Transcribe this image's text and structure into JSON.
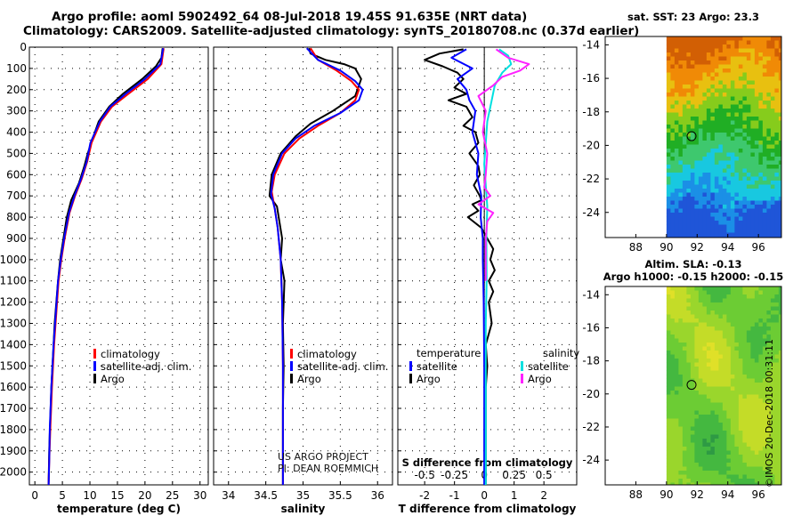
{
  "titles": {
    "line1": "Argo profile: aoml 5902492_64 08-Jul-2018 19.45S 91.635E (NRT data)",
    "line2": "Climatology: CARS2009. Satellite-adjusted climatology: synTS_20180708.nc (0.37d earlier)"
  },
  "colors": {
    "climatology": "#ff0000",
    "satellite": "#0000ff",
    "argo": "#000000",
    "sal_satellite": "#00e0e0",
    "sal_argo": "#ff22ff"
  },
  "chart_data": [
    {
      "type": "line",
      "id": "temperature",
      "xlabel": "temperature (deg C)",
      "xlim": [
        -1,
        31.5
      ],
      "xticks": [
        0,
        5,
        10,
        15,
        20,
        25,
        30
      ],
      "xtick_labels": [
        "0",
        "5",
        "10",
        "15",
        "20",
        "25",
        "30"
      ],
      "ylim": [
        0,
        2060
      ],
      "yticks": [
        0,
        100,
        200,
        300,
        400,
        500,
        600,
        700,
        800,
        900,
        1000,
        1100,
        1200,
        1300,
        1400,
        1500,
        1600,
        1700,
        1800,
        1900,
        2000
      ],
      "ytick_labels": [
        "0",
        "100",
        "200",
        "300",
        "400",
        "500",
        "600",
        "700",
        "800",
        "900",
        "1000",
        "1100",
        "1200",
        "1300",
        "1400",
        "1500",
        "1600",
        "1700",
        "1800",
        "1900",
        "2000"
      ],
      "legend": [
        "climatology",
        "satellite-adj. clim.",
        "Argo"
      ],
      "series": [
        {
          "name": "Argo",
          "color": "#000000",
          "x": [
            23.2,
            23.0,
            22.0,
            19.5,
            16.0,
            13.5,
            11.6,
            10.5,
            9.6,
            9.0,
            8.0,
            6.6,
            5.8,
            5.2,
            4.6,
            4.2,
            3.9,
            3.6,
            3.3,
            3.0,
            2.8,
            2.6,
            2.5
          ],
          "y": [
            5,
            50,
            90,
            150,
            220,
            280,
            350,
            430,
            500,
            560,
            640,
            720,
            800,
            900,
            1000,
            1100,
            1200,
            1300,
            1450,
            1600,
            1750,
            1900,
            2060
          ]
        },
        {
          "name": "climatology",
          "color": "#ff0000",
          "x": [
            23.4,
            23.0,
            20.5,
            17.0,
            14.0,
            12.0,
            10.3,
            9.5,
            8.5,
            7.3,
            6.3,
            5.4,
            4.8,
            4.3,
            3.9,
            3.5,
            3.1,
            2.8,
            2.6,
            2.5
          ],
          "y": [
            5,
            80,
            150,
            220,
            280,
            350,
            450,
            540,
            620,
            700,
            780,
            900,
            1000,
            1100,
            1250,
            1400,
            1600,
            1800,
            1950,
            2060
          ]
        },
        {
          "name": "satellite-adj. clim.",
          "color": "#0000ff",
          "x": [
            23.3,
            22.8,
            20.0,
            16.5,
            13.7,
            11.8,
            10.1,
            9.4,
            8.4,
            7.2,
            6.2,
            5.3,
            4.7,
            4.2,
            3.8,
            3.4,
            3.0,
            2.7,
            2.6,
            2.5
          ],
          "y": [
            5,
            80,
            150,
            220,
            280,
            350,
            450,
            540,
            620,
            700,
            780,
            900,
            1000,
            1100,
            1250,
            1400,
            1600,
            1800,
            1950,
            2060
          ]
        }
      ]
    },
    {
      "type": "line",
      "id": "salinity",
      "xlabel": "salinity",
      "xlim": [
        33.8,
        36.2
      ],
      "xticks": [
        34,
        34.5,
        35,
        35.5,
        36
      ],
      "xtick_labels": [
        "34",
        "34.5",
        "35",
        "35.5",
        "36"
      ],
      "ylim": [
        0,
        2060
      ],
      "legend": [
        "climatology",
        "satellite-adj. clim.",
        "Argo"
      ],
      "annotation": [
        "US ARGO PROJECT",
        "PI: DEAN ROEMMICH"
      ],
      "series": [
        {
          "name": "Argo",
          "color": "#000000",
          "x": [
            35.08,
            35.1,
            35.3,
            35.55,
            35.7,
            35.78,
            35.7,
            35.4,
            35.1,
            34.9,
            34.7,
            34.58,
            34.55,
            34.65,
            34.72,
            34.7,
            34.75,
            34.73,
            34.74,
            34.73,
            34.73,
            34.73
          ],
          "y": [
            5,
            30,
            60,
            80,
            100,
            150,
            230,
            300,
            360,
            420,
            500,
            600,
            700,
            750,
            900,
            1000,
            1100,
            1300,
            1500,
            1700,
            1900,
            2060
          ]
        },
        {
          "name": "climatology",
          "color": "#ff0000",
          "x": [
            35.1,
            35.2,
            35.45,
            35.65,
            35.75,
            35.7,
            35.5,
            35.2,
            34.95,
            34.75,
            34.62,
            34.58,
            34.62,
            34.66,
            34.7,
            34.72,
            34.73,
            34.73,
            34.73
          ],
          "y": [
            5,
            60,
            110,
            160,
            200,
            250,
            310,
            370,
            430,
            500,
            600,
            680,
            760,
            850,
            1000,
            1200,
            1500,
            1800,
            2060
          ]
        },
        {
          "name": "satellite-adj. clim.",
          "color": "#0000ff",
          "x": [
            35.05,
            35.2,
            35.5,
            35.7,
            35.8,
            35.75,
            35.5,
            35.15,
            34.9,
            34.72,
            34.6,
            34.57,
            34.62,
            34.66,
            34.7,
            34.72,
            34.73,
            34.73,
            34.73
          ],
          "y": [
            5,
            60,
            110,
            160,
            200,
            250,
            310,
            370,
            430,
            500,
            600,
            690,
            760,
            850,
            1000,
            1200,
            1500,
            1800,
            2060
          ]
        }
      ]
    },
    {
      "type": "line",
      "id": "difference",
      "xlabel": "T difference from climatology",
      "xlabel2": "S difference from climatology",
      "xlim": [
        -2.9,
        3.1
      ],
      "xticks": [
        -2,
        -1,
        0,
        1,
        2
      ],
      "xtick_labels": [
        "-2",
        "-1",
        "0",
        "1",
        "2"
      ],
      "s_ticks": [
        -0.5,
        -0.25,
        0,
        0.25,
        0.5
      ],
      "s_tick_labels": [
        "-0.5",
        "-0.25",
        "0",
        "0.25",
        "0.5"
      ],
      "s_scale": 4,
      "ylim": [
        0,
        2060
      ],
      "legend": {
        "temperature_header": "temperature",
        "salinity_header": "salinity",
        "t_entries": [
          "satellite",
          "Argo"
        ],
        "s_entries": [
          "satellite",
          "Argo"
        ]
      },
      "series": [
        {
          "name": "T Argo",
          "color": "#000000",
          "x": [
            -0.7,
            -1.5,
            -2.0,
            -1.4,
            -0.9,
            -0.7,
            -1.0,
            -0.6,
            -1.2,
            -0.6,
            -0.4,
            -0.7,
            -0.3,
            -0.2,
            -0.5,
            -0.2,
            -0.15,
            -0.35,
            -0.15,
            -0.1,
            -0.4,
            -0.2,
            -0.55,
            -0.1,
            0.1,
            0.3,
            0.2,
            0.35,
            0.15,
            0.3,
            0.15,
            0.25,
            0.05,
            0.1,
            0.05,
            0.05,
            0.05
          ],
          "y": [
            10,
            30,
            60,
            90,
            120,
            150,
            190,
            220,
            250,
            280,
            330,
            370,
            400,
            450,
            500,
            560,
            600,
            650,
            700,
            720,
            740,
            770,
            800,
            850,
            900,
            950,
            1000,
            1050,
            1100,
            1150,
            1200,
            1300,
            1400,
            1500,
            1600,
            1800,
            2060
          ]
        },
        {
          "name": "T satellite",
          "color": "#0000ff",
          "x": [
            -0.6,
            -1.1,
            -0.4,
            -0.9,
            -0.6,
            -0.5,
            -0.3,
            -0.4,
            -0.2,
            -0.25,
            -0.1,
            -0.12,
            -0.05,
            -0.05,
            -0.02,
            0,
            0,
            0
          ],
          "y": [
            10,
            50,
            100,
            150,
            200,
            250,
            300,
            400,
            500,
            600,
            700,
            800,
            900,
            1000,
            1200,
            1500,
            1800,
            2060
          ]
        },
        {
          "name": "S satellite",
          "color": "#00e0e0",
          "x": [
            0.5,
            0.8,
            0.9,
            0.6,
            0.35,
            0.25,
            0.1,
            0.05,
            0,
            0.05,
            0.1,
            0.07,
            0.08,
            0.05,
            0.05,
            0.05,
            0.05
          ],
          "y": [
            10,
            40,
            80,
            120,
            180,
            250,
            350,
            450,
            550,
            650,
            750,
            900,
            1100,
            1300,
            1500,
            1800,
            2060
          ]
        },
        {
          "name": "S Argo",
          "color": "#ff22ff",
          "x": [
            0.4,
            0.8,
            1.5,
            1.2,
            0.6,
            0.3,
            -0.2,
            0.05,
            -0.05,
            0.1,
            0.05,
            0.0,
            0.2,
            -0.2,
            0.3,
            0.1,
            0.05,
            0.05,
            0.05
          ],
          "y": [
            10,
            50,
            80,
            110,
            140,
            180,
            230,
            300,
            400,
            500,
            600,
            660,
            700,
            740,
            780,
            820,
            900,
            1000,
            1100
          ]
        }
      ]
    },
    {
      "type": "heatmap",
      "id": "sst_map",
      "title": "sat. SST: 23 Argo: 23.3",
      "xlim": [
        86,
        97.5
      ],
      "ylim": [
        -25.5,
        -13.5
      ],
      "xticks": [
        88,
        90,
        92,
        94,
        96
      ],
      "xtick_labels": [
        "88",
        "90",
        "92",
        "94",
        "96"
      ],
      "yticks": [
        -14,
        -16,
        -18,
        -20,
        -22,
        -24
      ],
      "ytick_labels": [
        "-14",
        "-16",
        "-18",
        "-20",
        "-22",
        "-24"
      ],
      "data_xmin": 90,
      "marker": [
        91.635,
        -19.45
      ],
      "palette": [
        "#1f55d8",
        "#1b8fe6",
        "#18c8e0",
        "#3ec86e",
        "#20ae24",
        "#86cc1c",
        "#e8c010",
        "#f08a06",
        "#d25f04"
      ]
    },
    {
      "type": "heatmap",
      "id": "sla_map",
      "title": "Altim. SLA: -0.13",
      "subtitle": "Argo h1000: -0.15 h2000: -0.15",
      "xlim": [
        86,
        97.5
      ],
      "ylim": [
        -25.5,
        -13.5
      ],
      "xticks": [
        88,
        90,
        92,
        94,
        96
      ],
      "xtick_labels": [
        "88",
        "90",
        "92",
        "94",
        "96"
      ],
      "yticks": [
        -14,
        -16,
        -18,
        -20,
        -22,
        -24
      ],
      "ytick_labels": [
        "-14",
        "-16",
        "-18",
        "-20",
        "-22",
        "-24"
      ],
      "data_xmin": 90,
      "marker": [
        91.635,
        -19.45
      ],
      "palette": [
        "#2e9a44",
        "#44b840",
        "#6ccc34",
        "#9ad62c",
        "#c4dc28",
        "#e0e028"
      ]
    }
  ],
  "stamp": "©IMOS 20-Dec-2018 00:31:11"
}
